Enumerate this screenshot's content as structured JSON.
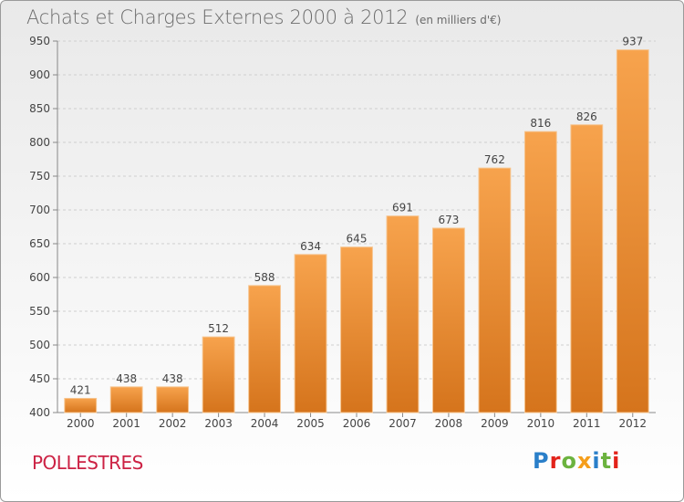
{
  "header": {
    "title": "Achats et Charges Externes 2000 à 2012",
    "unit": "(en milliers d'€)"
  },
  "footer": {
    "commune": "POLLESTRES",
    "logo_text": "Proxiti"
  },
  "colors": {
    "bar_top": "#f7a34d",
    "bar_bottom": "#d5741c",
    "commune": "#cc2244",
    "logo_letters": [
      "#2a7fc9",
      "#e2231a",
      "#6cb33f",
      "#f59e1b",
      "#2a7fc9",
      "#6cb33f",
      "#e2231a"
    ]
  },
  "chart_data": {
    "type": "bar",
    "title": "Achats et Charges Externes 2000 à 2012",
    "subtitle": "(en milliers d'€)",
    "categories": [
      "2000",
      "2001",
      "2002",
      "2003",
      "2004",
      "2005",
      "2006",
      "2007",
      "2008",
      "2009",
      "2010",
      "2011",
      "2012"
    ],
    "values": [
      421,
      438,
      438,
      512,
      588,
      634,
      645,
      691,
      673,
      762,
      816,
      826,
      937
    ],
    "ylim": [
      400,
      950
    ],
    "yticks": [
      400,
      450,
      500,
      550,
      600,
      650,
      700,
      750,
      800,
      850,
      900,
      950
    ],
    "grid": true,
    "data_labels": true
  }
}
